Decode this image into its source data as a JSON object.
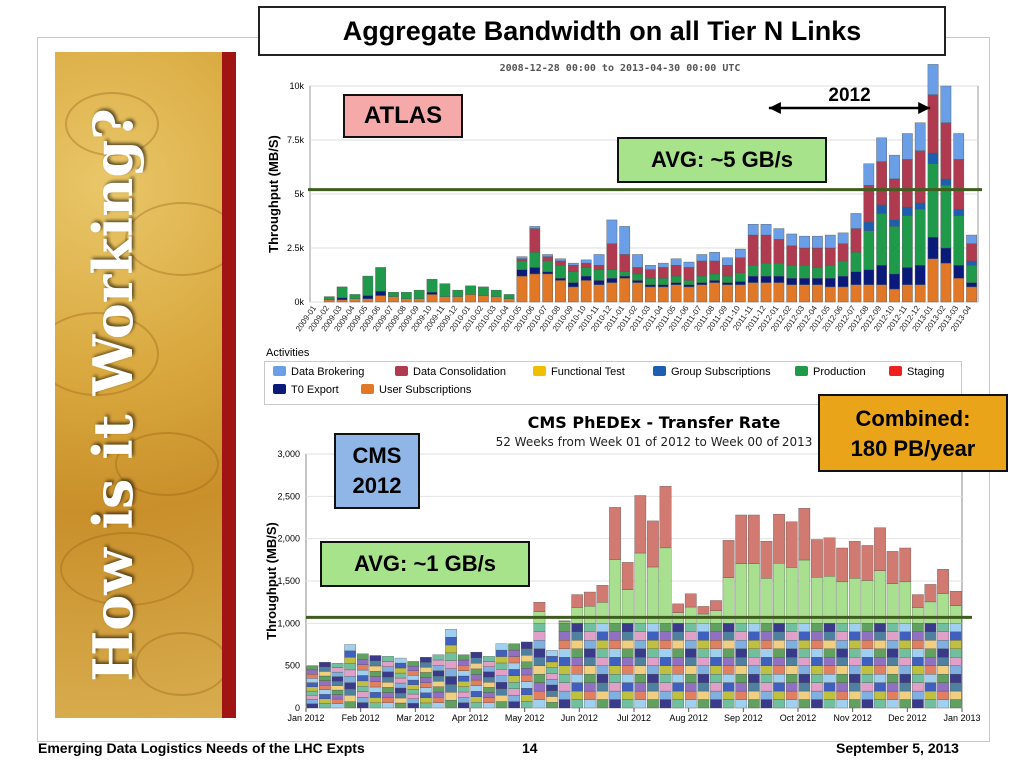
{
  "slide": {
    "title": "Aggregate Bandwidth on all Tier N Links",
    "vertical_title": "How is it Working?",
    "footer_left": "Emerging Data Logistics Needs of the LHC Expts",
    "footer_page": "14",
    "footer_date": "September 5, 2013"
  },
  "overlays": {
    "atlas": "ATLAS",
    "atlas_avg": "AVG: ~5 GB/s",
    "year_2012": "2012",
    "cms_line1": "CMS",
    "cms_line2": "2012",
    "cms_avg": "AVG: ~1 GB/s",
    "combined_line1": "Combined:",
    "combined_line2": "180 PB/year"
  },
  "colors": {
    "data_brokering": "#6a9fe8",
    "data_consolidation": "#b03a50",
    "functional_test": "#f0c000",
    "group_subscriptions": "#1c5fb0",
    "production": "#1e9a4a",
    "staging": "#ee2020",
    "t0_export": "#0a1a7a",
    "user_subscriptions": "#e07828",
    "avg_line": "#3f5d1f",
    "cms_top": "#d07a72",
    "cms_mid": "#a8e090"
  },
  "chart_data": [
    {
      "type": "bar",
      "subtitle": "2008-12-28 00:00 to 2013-04-30 00:00 UTC",
      "ylabel": "Throughput (MB/S)",
      "ylim": [
        0,
        10000
      ],
      "yticks": [
        "0k",
        "2.5k",
        "5k",
        "7.5k",
        "10k"
      ],
      "stacked": true,
      "legend_title": "Activities",
      "legend_placement": "bottom",
      "average_line": 5200,
      "annotation_range": [
        "2012-01",
        "2012-12"
      ],
      "categories": [
        "2009-01",
        "2009-02",
        "2009-03",
        "2009-04",
        "2009-05",
        "2009-06",
        "2009-07",
        "2009-08",
        "2009-09",
        "2009-10",
        "2009-11",
        "2009-12",
        "2010-01",
        "2010-02",
        "2010-03",
        "2010-04",
        "2010-05",
        "2010-06",
        "2010-07",
        "2010-08",
        "2010-09",
        "2010-10",
        "2010-11",
        "2010-12",
        "2011-01",
        "2011-02",
        "2011-03",
        "2011-04",
        "2011-05",
        "2011-06",
        "2011-07",
        "2011-08",
        "2011-09",
        "2011-10",
        "2011-11",
        "2011-12",
        "2012-01",
        "2012-02",
        "2012-03",
        "2012-04",
        "2012-05",
        "2012-06",
        "2012-07",
        "2012-08",
        "2012-09",
        "2012-10",
        "2012-11",
        "2012-12",
        "2013-01",
        "2013-02",
        "2013-03",
        "2013-04"
      ],
      "series": [
        {
          "name": "Data Brokering",
          "values": [
            0,
            0,
            0,
            0,
            0,
            0,
            0,
            0,
            0,
            0,
            0,
            0,
            0,
            0,
            0,
            0,
            100,
            100,
            100,
            100,
            100,
            150,
            500,
            1100,
            1300,
            600,
            200,
            200,
            300,
            250,
            300,
            400,
            350,
            400,
            500,
            500,
            500,
            550,
            550,
            550,
            600,
            500,
            700,
            1000,
            1100,
            1100,
            1200,
            1300,
            1400,
            1700,
            1200,
            400
          ]
        },
        {
          "name": "Data Consolidation",
          "values": [
            0,
            0,
            0,
            0,
            0,
            0,
            0,
            0,
            0,
            0,
            0,
            0,
            0,
            0,
            0,
            0,
            100,
            1100,
            200,
            200,
            300,
            200,
            200,
            1200,
            800,
            300,
            400,
            500,
            500,
            600,
            700,
            600,
            500,
            700,
            1400,
            1300,
            1100,
            900,
            800,
            900,
            800,
            800,
            1100,
            1700,
            2000,
            1900,
            2200,
            2400,
            2700,
            2600,
            2300,
            800
          ]
        },
        {
          "name": "Functional Test",
          "values": [
            0,
            0,
            0,
            0,
            0,
            0,
            0,
            0,
            0,
            0,
            0,
            0,
            0,
            0,
            0,
            0,
            0,
            0,
            0,
            0,
            0,
            0,
            0,
            0,
            0,
            0,
            0,
            0,
            0,
            0,
            0,
            0,
            0,
            0,
            0,
            0,
            0,
            0,
            0,
            0,
            0,
            0,
            0,
            0,
            0,
            0,
            0,
            0,
            0,
            0,
            0,
            0
          ]
        },
        {
          "name": "Group Subscriptions",
          "values": [
            0,
            0,
            0,
            0,
            0,
            0,
            0,
            0,
            0,
            0,
            0,
            0,
            0,
            0,
            0,
            0,
            0,
            0,
            0,
            0,
            0,
            0,
            0,
            0,
            0,
            0,
            0,
            0,
            0,
            0,
            0,
            0,
            0,
            0,
            0,
            0,
            0,
            0,
            0,
            0,
            0,
            0,
            0,
            400,
            400,
            300,
            400,
            300,
            500,
            300,
            300,
            200
          ]
        },
        {
          "name": "Production",
          "values": [
            0,
            150,
            500,
            200,
            900,
            1100,
            200,
            300,
            400,
            600,
            600,
            300,
            400,
            400,
            300,
            200,
            400,
            700,
            500,
            600,
            500,
            400,
            500,
            400,
            200,
            300,
            300,
            300,
            300,
            200,
            300,
            300,
            300,
            400,
            500,
            600,
            600,
            600,
            600,
            500,
            600,
            700,
            900,
            1800,
            2400,
            2200,
            2400,
            2600,
            3400,
            2900,
            2300,
            800
          ]
        },
        {
          "name": "Staging",
          "values": [
            0,
            0,
            0,
            0,
            0,
            0,
            0,
            0,
            0,
            0,
            0,
            0,
            0,
            0,
            0,
            0,
            0,
            0,
            0,
            0,
            0,
            0,
            0,
            0,
            0,
            0,
            0,
            0,
            0,
            0,
            0,
            0,
            0,
            0,
            0,
            0,
            0,
            0,
            0,
            0,
            0,
            0,
            0,
            0,
            0,
            0,
            0,
            0,
            0,
            0,
            0,
            0
          ]
        },
        {
          "name": "T0 Export",
          "values": [
            0,
            0,
            100,
            0,
            150,
            200,
            0,
            0,
            0,
            100,
            0,
            0,
            0,
            0,
            0,
            0,
            300,
            300,
            100,
            100,
            200,
            200,
            200,
            200,
            100,
            100,
            100,
            100,
            100,
            100,
            100,
            100,
            100,
            150,
            300,
            300,
            300,
            300,
            300,
            300,
            400,
            500,
            600,
            700,
            900,
            700,
            800,
            900,
            1000,
            700,
            600,
            200
          ]
        },
        {
          "name": "User Subscriptions",
          "values": [
            0,
            100,
            100,
            150,
            150,
            300,
            250,
            150,
            150,
            350,
            250,
            250,
            350,
            300,
            250,
            150,
            1200,
            1300,
            1300,
            1000,
            700,
            1000,
            800,
            900,
            1100,
            900,
            700,
            700,
            800,
            700,
            800,
            900,
            800,
            800,
            900,
            900,
            900,
            800,
            800,
            800,
            700,
            700,
            800,
            800,
            800,
            600,
            800,
            800,
            2000,
            1800,
            1100,
            700
          ]
        }
      ]
    },
    {
      "type": "bar",
      "title": "CMS PhEDEx - Transfer Rate",
      "subtitle": "52 Weeks from Week 01 of 2012 to Week 00 of 2013",
      "ylabel": "Throughput (MB/S)",
      "ylim": [
        0,
        3000
      ],
      "yticks": [
        "0",
        "500",
        "1,000",
        "1,500",
        "2,000",
        "2,500",
        "3,000"
      ],
      "stacked": true,
      "average_line": 1070,
      "x_month_labels": [
        "Jan 2012",
        "Feb 2012",
        "Mar 2012",
        "Apr 2012",
        "May 2012",
        "Jun 2012",
        "Jul 2012",
        "Aug 2012",
        "Sep 2012",
        "Oct 2012",
        "Nov 2012",
        "Dec 2012",
        "Jan 2013"
      ],
      "weekly_totals": [
        500,
        540,
        530,
        750,
        640,
        620,
        610,
        590,
        550,
        600,
        630,
        930,
        630,
        660,
        610,
        760,
        760,
        780,
        1250,
        680,
        1030,
        1340,
        1370,
        1450,
        2370,
        1720,
        2510,
        2210,
        2620,
        1230,
        1350,
        1200,
        1270,
        1980,
        2280,
        2280,
        1970,
        2290,
        2200,
        2360,
        1990,
        2010,
        1890,
        1970,
        1920,
        2130,
        1850,
        1890,
        1340,
        1460,
        1640,
        1380
      ]
    }
  ]
}
